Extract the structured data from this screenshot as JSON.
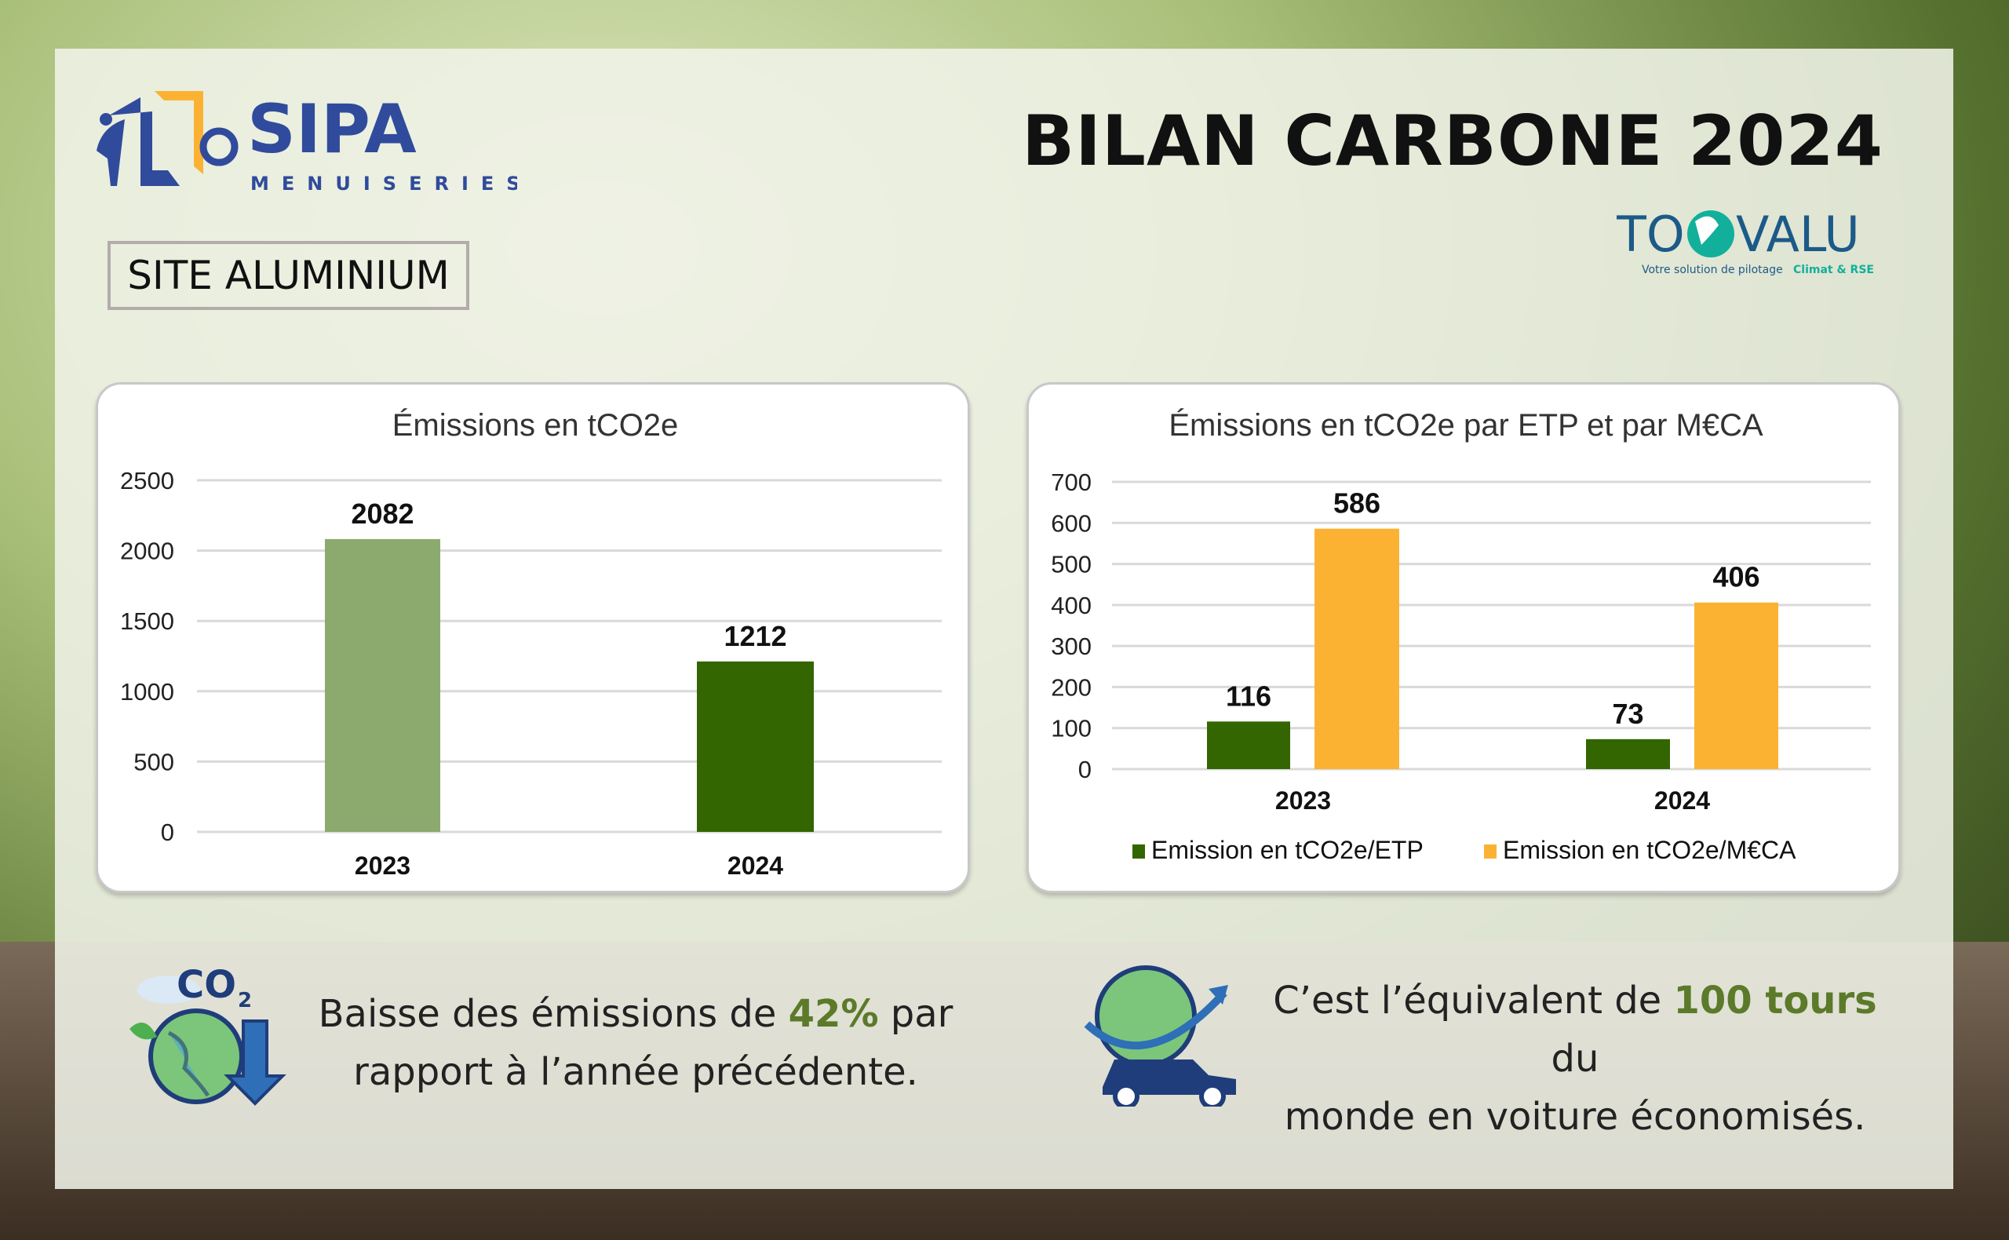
{
  "header": {
    "title": "BILAN CARBONE 2024",
    "site_label": "SITE ALUMINIUM",
    "company_logo": {
      "name": "SIPA",
      "subtitle": "MENUISERIES"
    },
    "partner_logo": {
      "name_left": "TO",
      "name_right": "VALU",
      "tagline": "Votre solution de pilotage",
      "tagline_accent": "Climat & RSE"
    }
  },
  "colors": {
    "light_green": "#8daa6e",
    "dark_green": "#336600",
    "orange": "#fbb233",
    "logo_blue": "#304b9c",
    "logo_orange": "#fbb233",
    "toovalu_blue": "#1c5a87",
    "toovalu_teal": "#12b09b",
    "accent_text": "#5b7a2a"
  },
  "chart_data": [
    {
      "type": "bar",
      "title": "Émissions en tCO2e",
      "categories": [
        "2023",
        "2024"
      ],
      "values": [
        2082,
        1212
      ],
      "ylim": [
        0,
        2500
      ],
      "yticks": [
        "0",
        "500",
        "1000",
        "1500",
        "2000",
        "2500"
      ],
      "grid": true,
      "xlabel": "",
      "ylabel": ""
    },
    {
      "type": "bar",
      "title": "Émissions en tCO2e par ETP et par M€CA",
      "categories": [
        "2023",
        "2024"
      ],
      "series": [
        {
          "name": "Emission en tCO2e/ETP",
          "values": [
            116,
            73
          ]
        },
        {
          "name": "Emission en tCO2e/M€CA",
          "values": [
            586,
            406
          ]
        }
      ],
      "ylim": [
        0,
        700
      ],
      "yticks": [
        "0",
        "100",
        "200",
        "300",
        "400",
        "500",
        "600",
        "700"
      ],
      "grid": true,
      "legend": "bottom",
      "xlabel": "",
      "ylabel": ""
    }
  ],
  "facts": [
    {
      "icon": "co2-globe-down-icon",
      "before": "Baisse des émissions de ",
      "highlight": "42%",
      "after": " par",
      "line2": "rapport à l’année précédente."
    },
    {
      "icon": "globe-car-icon",
      "before": "C’est l’équivalent de ",
      "highlight": "100 tours",
      "after": " du",
      "line2": "monde en voiture économisés."
    }
  ]
}
